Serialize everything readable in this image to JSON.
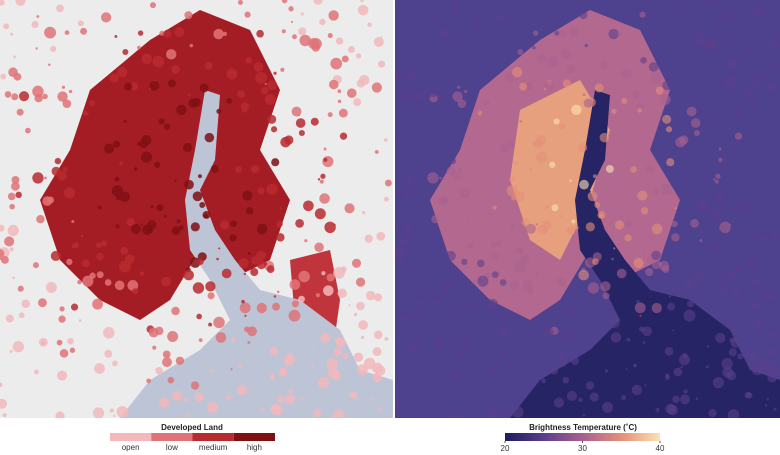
{
  "legends": {
    "developed_land": {
      "title": "Developed Land",
      "categories": [
        "open",
        "low",
        "medium",
        "high"
      ],
      "colors": [
        "#f2b8bc",
        "#e07378",
        "#b82a30",
        "#7e1014"
      ]
    },
    "brightness_temperature": {
      "title": "Brightness Temperature (˚C)",
      "range": [
        20,
        40
      ],
      "ticks": [
        20,
        30,
        40
      ],
      "colormap": [
        "#1e1c5e",
        "#5a3f8c",
        "#a9608f",
        "#e48f79",
        "#fbe2b5"
      ]
    }
  }
}
